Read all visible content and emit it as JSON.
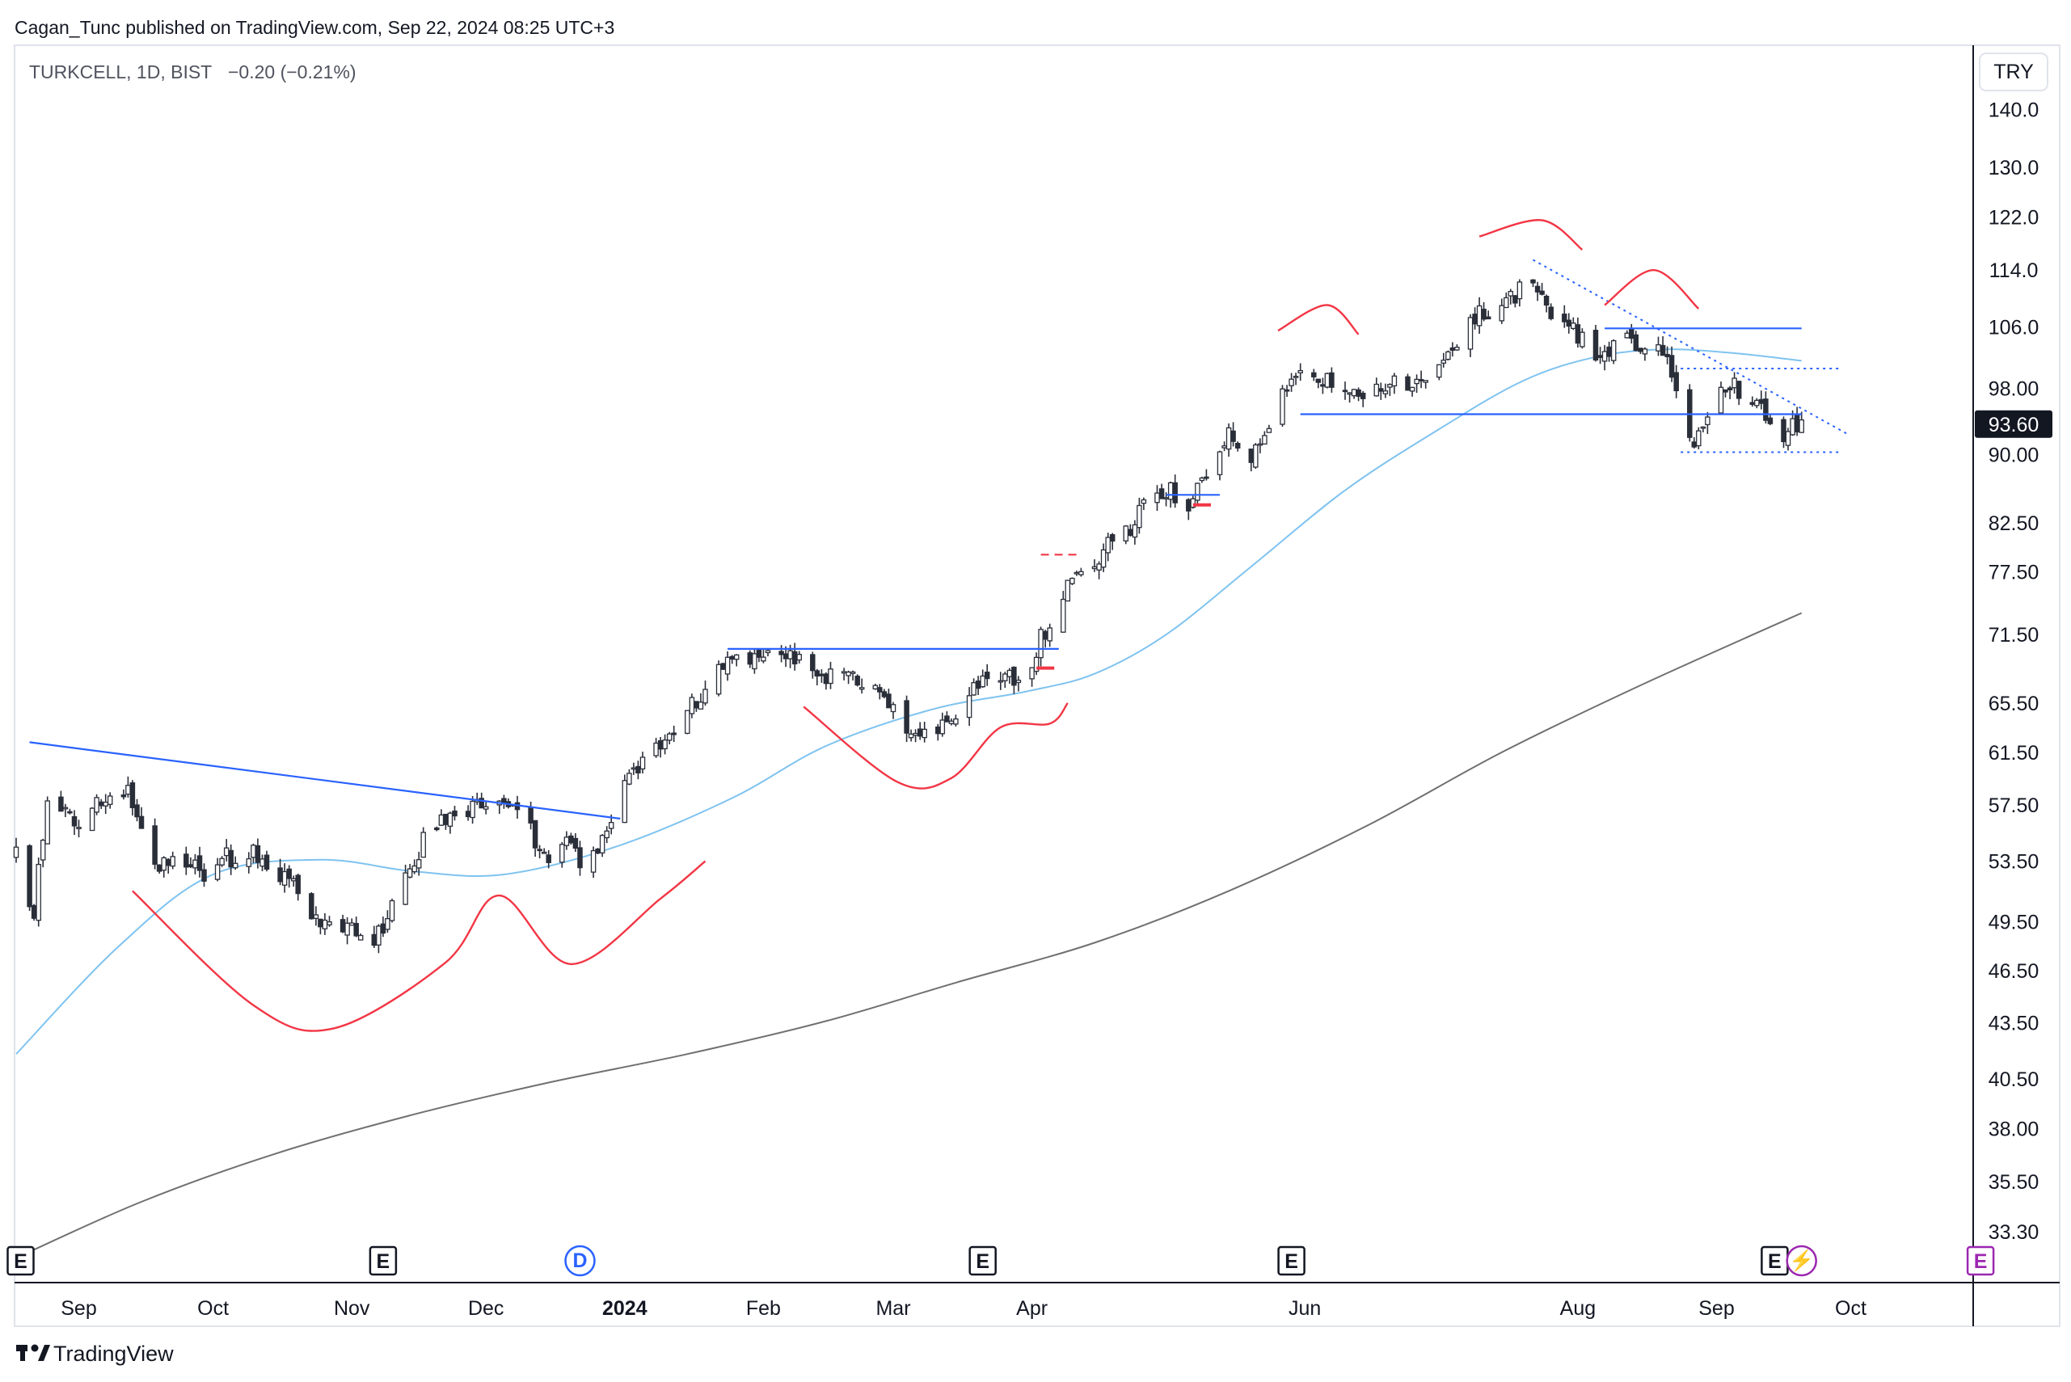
{
  "header": {
    "published": "Cagan_Tunc published on TradingView.com, Sep 22, 2024 08:25 UTC+3"
  },
  "symbol": {
    "name": "TURKCELL, 1D, BIST",
    "change": "−0.20 (−0.21%)"
  },
  "currency_button": "TRY",
  "last_price_label": "93.60",
  "brand": "TradingView",
  "colors": {
    "candle": "#2a2e39",
    "ma_fast": "#7fc3f0",
    "ma_slow": "#707070",
    "trendline": "#2962ff",
    "pattern": "#f23645",
    "event": "#9c27b0"
  },
  "event_markers": [
    {
      "label": "E",
      "date": "2023-08-19",
      "kind": "earnings"
    },
    {
      "label": "E",
      "date": "2023-11-08",
      "kind": "earnings"
    },
    {
      "label": "D",
      "date": "2023-12-22",
      "kind": "dividend"
    },
    {
      "label": "E",
      "date": "2024-03-21",
      "kind": "earnings"
    },
    {
      "label": "E",
      "date": "2024-05-29",
      "kind": "earnings"
    },
    {
      "label": "E",
      "date": "2024-09-14",
      "kind": "earnings"
    },
    {
      "label": "⚡",
      "date": "2024-09-20",
      "kind": "split"
    },
    {
      "label": "E",
      "date": "2024-10-30",
      "kind": "earnings-upcoming"
    }
  ],
  "chart_data": {
    "type": "candlestick",
    "scale": "log",
    "x_range": [
      "2023-08-18",
      "2024-10-28"
    ],
    "y_range": [
      31.2,
      152
    ],
    "y_ticks": [
      "140.0",
      "130.0",
      "122.0",
      "114.0",
      "106.0",
      "98.00",
      "90.00",
      "82.50",
      "77.50",
      "71.50",
      "65.50",
      "61.50",
      "57.50",
      "53.50",
      "49.50",
      "46.50",
      "43.50",
      "40.50",
      "38.00",
      "35.50",
      "33.30"
    ],
    "x_ticks": [
      {
        "label": "Sep",
        "date": "2023-09-01"
      },
      {
        "label": "Oct",
        "date": "2023-10-01"
      },
      {
        "label": "Nov",
        "date": "2023-11-01"
      },
      {
        "label": "Dec",
        "date": "2023-12-01"
      },
      {
        "label": "2024",
        "date": "2024-01-01",
        "bold": true
      },
      {
        "label": "Feb",
        "date": "2024-02-01"
      },
      {
        "label": "Mar",
        "date": "2024-03-01"
      },
      {
        "label": "Apr",
        "date": "2024-04-01"
      },
      {
        "label": "Jun",
        "date": "2024-06-01"
      },
      {
        "label": "Aug",
        "date": "2024-08-01"
      },
      {
        "label": "Sep",
        "date": "2024-09-01"
      },
      {
        "label": "Oct",
        "date": "2024-10-01"
      }
    ],
    "last_price": 93.6,
    "ohlc_anchors": [
      [
        "2023-08-18",
        54.0
      ],
      [
        "2023-08-22",
        50.2
      ],
      [
        "2023-08-25",
        57.5
      ],
      [
        "2023-08-29",
        57.0
      ],
      [
        "2023-09-01",
        56.5
      ],
      [
        "2023-09-05",
        57.4
      ],
      [
        "2023-09-08",
        57.8
      ],
      [
        "2023-09-12",
        58.5
      ],
      [
        "2023-09-15",
        55.5
      ],
      [
        "2023-09-19",
        53.0
      ],
      [
        "2023-09-22",
        53.6
      ],
      [
        "2023-09-26",
        53.5
      ],
      [
        "2023-09-29",
        52.5
      ],
      [
        "2023-10-03",
        53.5
      ],
      [
        "2023-10-06",
        54.0
      ],
      [
        "2023-10-10",
        54.5
      ],
      [
        "2023-10-13",
        53.2
      ],
      [
        "2023-10-17",
        52.5
      ],
      [
        "2023-10-20",
        51.5
      ],
      [
        "2023-10-24",
        50.0
      ],
      [
        "2023-10-27",
        49.0
      ],
      [
        "2023-10-31",
        49.5
      ],
      [
        "2023-11-03",
        48.5
      ],
      [
        "2023-11-06",
        48.0
      ],
      [
        "2023-11-10",
        50.5
      ],
      [
        "2023-11-14",
        53.0
      ],
      [
        "2023-11-17",
        54.8
      ],
      [
        "2023-11-21",
        56.0
      ],
      [
        "2023-11-24",
        57.0
      ],
      [
        "2023-11-28",
        57.5
      ],
      [
        "2023-12-01",
        57.2
      ],
      [
        "2023-12-05",
        57.0
      ],
      [
        "2023-12-08",
        57.5
      ],
      [
        "2023-12-12",
        55.0
      ],
      [
        "2023-12-15",
        53.0
      ],
      [
        "2023-12-19",
        55.5
      ],
      [
        "2023-12-22",
        53.5
      ],
      [
        "2023-12-26",
        54.0
      ],
      [
        "2023-12-29",
        57.0
      ],
      [
        "2024-01-03",
        60.0
      ],
      [
        "2024-01-08",
        62.0
      ],
      [
        "2024-01-12",
        63.5
      ],
      [
        "2024-01-17",
        65.5
      ],
      [
        "2024-01-22",
        68.0
      ],
      [
        "2024-01-26",
        70.0
      ],
      [
        "2024-01-31",
        69.5
      ],
      [
        "2024-02-05",
        70.5
      ],
      [
        "2024-02-09",
        69.0
      ],
      [
        "2024-02-14",
        67.8
      ],
      [
        "2024-02-19",
        68.5
      ],
      [
        "2024-02-23",
        66.5
      ],
      [
        "2024-02-28",
        66.0
      ],
      [
        "2024-03-04",
        63.0
      ],
      [
        "2024-03-08",
        62.5
      ],
      [
        "2024-03-13",
        63.5
      ],
      [
        "2024-03-18",
        66.5
      ],
      [
        "2024-03-22",
        68.5
      ],
      [
        "2024-03-27",
        67.5
      ],
      [
        "2024-04-01",
        69.5
      ],
      [
        "2024-04-04",
        72.0
      ],
      [
        "2024-04-08",
        75.5
      ],
      [
        "2024-04-12",
        77.0
      ],
      [
        "2024-04-17",
        79.5
      ],
      [
        "2024-04-22",
        81.5
      ],
      [
        "2024-04-26",
        84.0
      ],
      [
        "2024-05-01",
        86.0
      ],
      [
        "2024-05-06",
        84.5
      ],
      [
        "2024-05-10",
        88.0
      ],
      [
        "2024-05-15",
        93.0
      ],
      [
        "2024-05-20",
        90.0
      ],
      [
        "2024-05-24",
        93.5
      ],
      [
        "2024-05-29",
        100.0
      ],
      [
        "2024-06-03",
        99.0
      ],
      [
        "2024-06-07",
        98.5
      ],
      [
        "2024-06-12",
        96.5
      ],
      [
        "2024-06-17",
        97.5
      ],
      [
        "2024-06-21",
        99.5
      ],
      [
        "2024-06-26",
        98.0
      ],
      [
        "2024-07-01",
        100.5
      ],
      [
        "2024-07-05",
        104.5
      ],
      [
        "2024-07-10",
        107.5
      ],
      [
        "2024-07-15",
        109.0
      ],
      [
        "2024-07-19",
        111.0
      ],
      [
        "2024-07-23",
        112.0
      ],
      [
        "2024-07-26",
        108.0
      ],
      [
        "2024-07-31",
        105.5
      ],
      [
        "2024-08-02",
        104.0
      ],
      [
        "2024-08-05",
        101.0
      ],
      [
        "2024-08-09",
        104.0
      ],
      [
        "2024-08-14",
        103.5
      ],
      [
        "2024-08-19",
        105.0
      ],
      [
        "2024-08-22",
        98.5
      ],
      [
        "2024-08-27",
        91.5
      ],
      [
        "2024-08-30",
        95.0
      ],
      [
        "2024-09-04",
        98.5
      ],
      [
        "2024-09-09",
        97.0
      ],
      [
        "2024-09-12",
        94.0
      ],
      [
        "2024-09-16",
        92.5
      ],
      [
        "2024-09-20",
        93.6
      ]
    ],
    "series": [
      {
        "name": "",
        "kind": "moving-average-fast",
        "points": [
          [
            "2023-08-18",
            41.8
          ],
          [
            "2023-09-10",
            48.0
          ],
          [
            "2023-10-01",
            52.6
          ],
          [
            "2023-10-25",
            53.6
          ],
          [
            "2023-11-15",
            52.8
          ],
          [
            "2023-12-05",
            52.6
          ],
          [
            "2023-12-30",
            54.5
          ],
          [
            "2024-01-25",
            58.0
          ],
          [
            "2024-02-15",
            62.0
          ],
          [
            "2024-03-10",
            65.0
          ],
          [
            "2024-03-31",
            66.5
          ],
          [
            "2024-04-15",
            68.0
          ],
          [
            "2024-05-01",
            71.5
          ],
          [
            "2024-05-20",
            78.0
          ],
          [
            "2024-06-10",
            86.0
          ],
          [
            "2024-07-01",
            93.0
          ],
          [
            "2024-07-20",
            99.0
          ],
          [
            "2024-08-05",
            102.0
          ],
          [
            "2024-08-20",
            103.0
          ],
          [
            "2024-09-05",
            102.5
          ],
          [
            "2024-09-20",
            101.5
          ]
        ]
      },
      {
        "name": "",
        "kind": "moving-average-slow",
        "points": [
          [
            "2023-08-18",
            32.2
          ],
          [
            "2023-09-15",
            34.6
          ],
          [
            "2023-10-15",
            36.8
          ],
          [
            "2023-11-15",
            38.7
          ],
          [
            "2023-12-15",
            40.3
          ],
          [
            "2024-01-15",
            41.8
          ],
          [
            "2024-02-15",
            43.6
          ],
          [
            "2024-03-15",
            45.8
          ],
          [
            "2024-04-15",
            48.2
          ],
          [
            "2024-05-15",
            51.5
          ],
          [
            "2024-06-15",
            56.0
          ],
          [
            "2024-07-15",
            61.5
          ],
          [
            "2024-08-15",
            67.0
          ],
          [
            "2024-09-20",
            73.5
          ]
        ]
      }
    ],
    "drawings": {
      "trendlines": [
        {
          "from": [
            "2023-08-21",
            62.3
          ],
          "to": [
            "2023-12-31",
            56.5
          ],
          "color": "blue"
        },
        {
          "from": [
            "2024-01-24",
            70.2
          ],
          "to": [
            "2024-04-07",
            70.2
          ],
          "color": "blue"
        },
        {
          "from": [
            "2024-05-01",
            85.5
          ],
          "to": [
            "2024-05-13",
            85.5
          ],
          "color": "blue"
        },
        {
          "from": [
            "2024-05-31",
            94.8
          ],
          "to": [
            "2024-09-20",
            94.8
          ],
          "color": "blue"
        },
        {
          "from": [
            "2024-08-07",
            105.8
          ],
          "to": [
            "2024-09-20",
            105.8
          ],
          "color": "blue"
        },
        {
          "from": [
            "2024-07-22",
            115.5
          ],
          "to": [
            "2024-09-30",
            92.5
          ],
          "color": "blue",
          "style": "dotted"
        },
        {
          "from": [
            "2024-08-24",
            100.5
          ],
          "to": [
            "2024-09-29",
            100.5
          ],
          "color": "blue",
          "style": "dotted"
        },
        {
          "from": [
            "2024-08-24",
            90.3
          ],
          "to": [
            "2024-09-29",
            90.3
          ],
          "color": "blue",
          "style": "dotted"
        },
        {
          "from": [
            "2024-04-03",
            79.2
          ],
          "to": [
            "2024-04-12",
            79.2
          ],
          "color": "red",
          "style": "dashed"
        },
        {
          "from": [
            "2024-04-02",
            68.5
          ],
          "to": [
            "2024-04-06",
            68.5
          ],
          "color": "red"
        },
        {
          "from": [
            "2024-05-07",
            84.4
          ],
          "to": [
            "2024-05-11",
            84.4
          ],
          "color": "red"
        }
      ],
      "arcs": [
        {
          "kind": "rounding-bottom",
          "points": [
            [
              "2023-09-13",
              51.5
            ],
            [
              "2023-10-10",
              44.5
            ],
            [
              "2023-10-28",
              43.2
            ],
            [
              "2023-11-22",
              47.0
            ],
            [
              "2023-12-04",
              51.2
            ],
            [
              "2023-12-20",
              46.9
            ],
            [
              "2024-01-09",
              51.0
            ],
            [
              "2024-01-19",
              53.5
            ]
          ]
        },
        {
          "kind": "rounding-bottom",
          "points": [
            [
              "2024-02-10",
              65.2
            ],
            [
              "2024-03-02",
              59.2
            ],
            [
              "2024-03-14",
              59.5
            ],
            [
              "2024-03-25",
              63.5
            ],
            [
              "2024-04-05",
              63.8
            ],
            [
              "2024-04-09",
              65.5
            ]
          ]
        },
        {
          "kind": "top",
          "points": [
            [
              "2024-05-26",
              105.5
            ],
            [
              "2024-06-06",
              109.0
            ],
            [
              "2024-06-13",
              105.0
            ]
          ]
        },
        {
          "kind": "top",
          "points": [
            [
              "2024-07-10",
              119.0
            ],
            [
              "2024-07-24",
              121.5
            ],
            [
              "2024-08-02",
              117.0
            ]
          ]
        },
        {
          "kind": "top",
          "points": [
            [
              "2024-08-07",
              109.0
            ],
            [
              "2024-08-18",
              114.0
            ],
            [
              "2024-08-28",
              108.5
            ]
          ]
        }
      ]
    }
  }
}
